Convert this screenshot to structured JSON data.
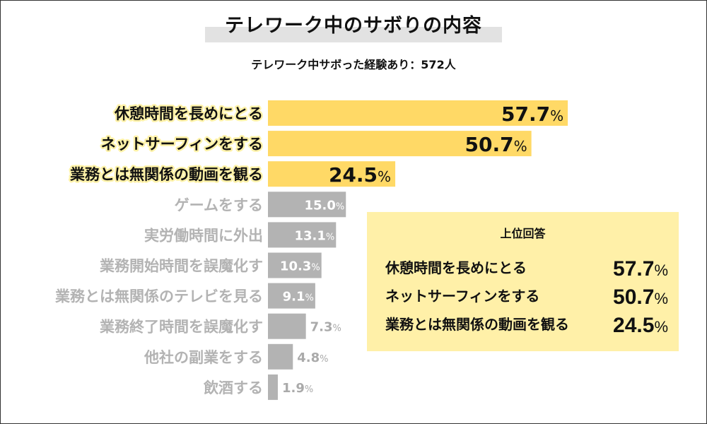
{
  "chart_data": {
    "type": "bar",
    "orientation": "horizontal",
    "title": "テレワーク中のサボりの内容",
    "subtitle": "テレワーク中サボった経験あり：572人",
    "unit": "%",
    "categories": [
      "休憩時間を長めにとる",
      "ネットサーフィンをする",
      "業務とは無関係の動画を観る",
      "ゲームをする",
      "実労働時間に外出",
      "業務開始時間を誤魔化す",
      "業務とは無関係のテレビを見る",
      "業務終了時間を誤魔化す",
      "他社の副業をする",
      "飲酒する"
    ],
    "values": [
      57.7,
      50.7,
      24.5,
      15.0,
      13.1,
      10.3,
      9.1,
      7.3,
      4.8,
      1.9
    ],
    "value_labels": [
      "57.7",
      "50.7",
      "24.5",
      "15.0",
      "13.1",
      "10.3",
      "9.1",
      "7.3",
      "4.8",
      "1.9"
    ],
    "highlight_count": 3,
    "colors": {
      "highlight_bar": "#ffd966",
      "other_bar": "#b3b3b3",
      "highlight_text": "#111111",
      "other_text": "#b3b3b3",
      "label_glow": "#fff2a8"
    },
    "grid": false
  },
  "legend": {
    "title": "上位回答",
    "items": [
      {
        "label": "休憩時間を長めにとる",
        "value": "57.7",
        "unit": "%"
      },
      {
        "label": "ネットサーフィンをする",
        "value": "50.7",
        "unit": "%"
      },
      {
        "label": "業務とは無関係の動画を観る",
        "value": "24.5",
        "unit": "%"
      }
    ]
  }
}
